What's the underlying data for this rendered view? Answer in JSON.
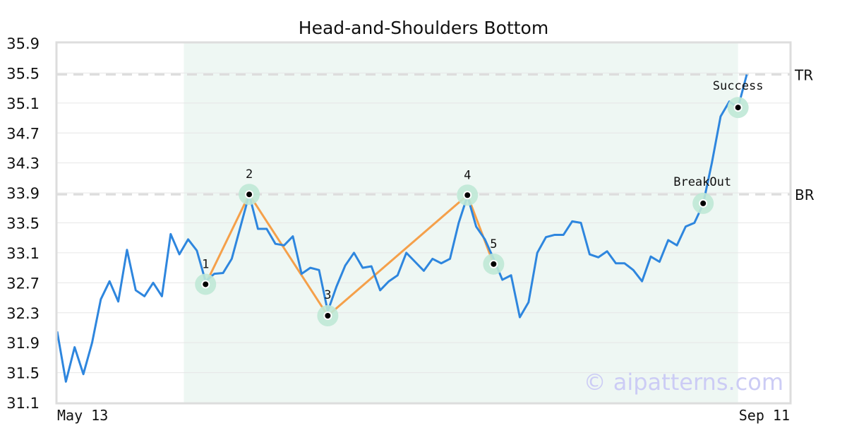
{
  "chart_data": {
    "type": "line",
    "title": "Head-and-Shoulders Bottom",
    "xlabel": "",
    "ylabel": "",
    "ylim": [
      31.1,
      35.9
    ],
    "yticks": [
      "31.1",
      "31.5",
      "31.9",
      "32.3",
      "32.7",
      "33.1",
      "33.5",
      "33.9",
      "34.3",
      "34.7",
      "35.1",
      "35.5",
      "35.9"
    ],
    "x_labels": [
      {
        "text": "May 13",
        "index": 0
      },
      {
        "text": "Sep 11",
        "index": 79
      }
    ],
    "grid": true,
    "series": [
      {
        "values": [
          32.05,
          31.38,
          31.84,
          31.48,
          31.9,
          32.48,
          32.72,
          32.45,
          33.14,
          32.6,
          32.52,
          32.7,
          32.52,
          33.35,
          33.08,
          33.28,
          33.13,
          32.72,
          32.82,
          32.83,
          33.02,
          33.45,
          33.88,
          33.42,
          33.42,
          33.22,
          33.2,
          33.32,
          32.82,
          32.9,
          32.87,
          32.32,
          32.65,
          32.93,
          33.1,
          32.9,
          32.92,
          32.6,
          32.72,
          32.8,
          33.1,
          32.98,
          32.86,
          33.02,
          32.96,
          33.02,
          33.5,
          33.86,
          33.45,
          33.28,
          33.02,
          32.74,
          32.8,
          32.24,
          32.44,
          33.1,
          33.31,
          33.34,
          33.34,
          33.52,
          33.5,
          33.08,
          33.04,
          33.12,
          32.96,
          32.96,
          32.87,
          32.72,
          33.05,
          32.98,
          33.27,
          33.2,
          33.45,
          33.5,
          33.75,
          34.3,
          34.92,
          35.12,
          35.04,
          35.48
        ]
      }
    ],
    "pattern": {
      "name": "Head-and-Shoulders Bottom",
      "shaded_index_range": [
        15,
        78
      ],
      "points": [
        {
          "label": "1",
          "index": 17,
          "value": 32.68
        },
        {
          "label": "2",
          "index": 22,
          "value": 33.88
        },
        {
          "label": "3",
          "index": 31,
          "value": 32.26
        },
        {
          "label": "4",
          "index": 47,
          "value": 33.87
        },
        {
          "label": "5",
          "index": 50,
          "value": 32.95
        }
      ],
      "markers": [
        {
          "label": "BreakOut",
          "index": 74,
          "value": 33.76
        },
        {
          "label": "Success",
          "index": 78,
          "value": 35.04
        }
      ]
    },
    "levels": [
      {
        "label": "TR",
        "value": 35.48
      },
      {
        "label": "BR",
        "value": 33.88
      }
    ],
    "colors": {
      "line": "#2e86de",
      "pattern_line": "#f5a04a",
      "shade": "#eef7f3",
      "marker_halo": "#bfe8d6",
      "level_line": "#dddddd",
      "grid": "#e6e6e6",
      "frame": "#dddddd",
      "watermark": "#ccccf5"
    }
  },
  "watermark": "© aipatterns.com"
}
